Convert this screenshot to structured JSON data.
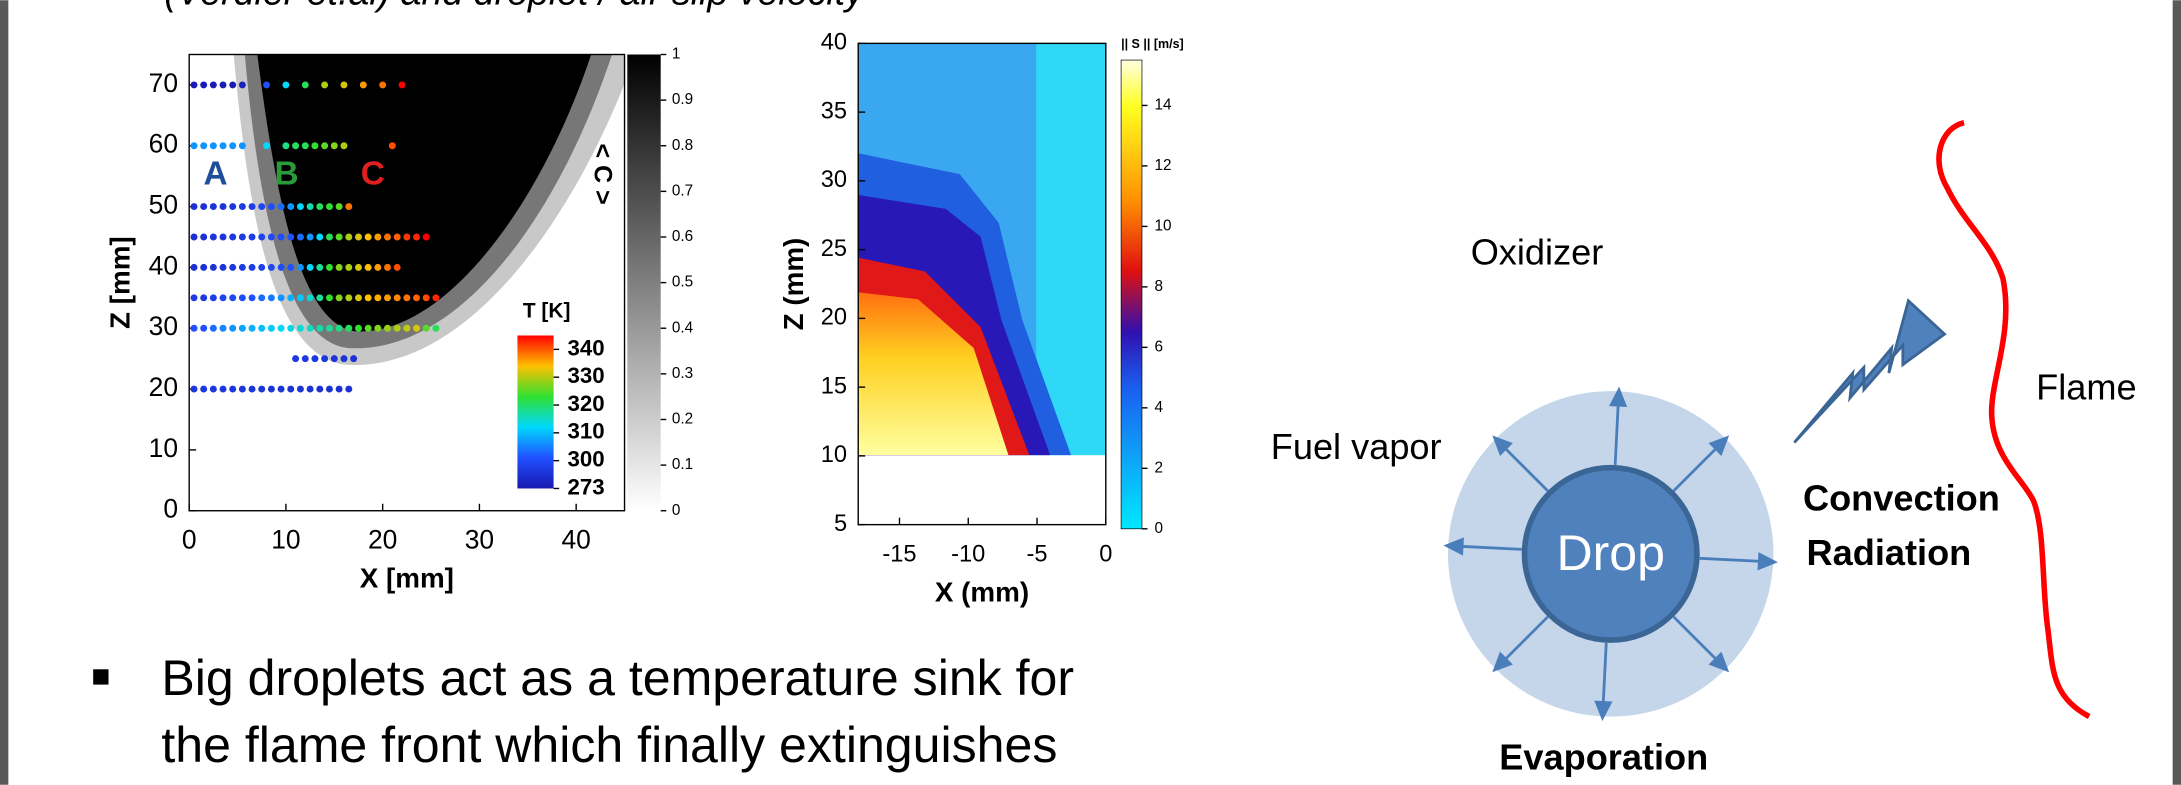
{
  "header": {
    "subtitle": "(Verdier et.al) and droplet / air slip velocity"
  },
  "chart_data": [
    {
      "type": "scatter",
      "xlabel": "X [mm]",
      "ylabel": "Z [mm]",
      "xlim": [
        0,
        45
      ],
      "ylim": [
        0,
        75
      ],
      "xticks": [
        0,
        10,
        20,
        30,
        40
      ],
      "yticks": [
        0,
        10,
        20,
        30,
        40,
        50,
        60,
        70
      ],
      "annotations": [
        {
          "text": "A",
          "color": "#1f4e9a"
        },
        {
          "text": "B",
          "color": "#2a9a3a"
        },
        {
          "text": "C",
          "color": "#e02020"
        }
      ],
      "colorbar": {
        "title": "T [K]",
        "ticks": [
          340,
          330,
          320,
          310,
          300,
          273
        ],
        "colormap": [
          "#ff0000",
          "#ffc000",
          "#30e030",
          "#00d8ff",
          "#2050ff",
          "#1818b0"
        ]
      },
      "background_colorbar": {
        "title": "< C >",
        "ticks": [
          0,
          0.1,
          0.2,
          0.3,
          0.4,
          0.5,
          0.6,
          0.7,
          0.8,
          0.9,
          1
        ]
      },
      "series": [
        {
          "y": 70,
          "x": [
            0.5,
            1.5,
            2.5,
            3.5,
            4.5,
            5.5,
            8,
            10,
            12,
            14,
            16,
            18,
            20,
            22
          ],
          "t": [
            275,
            275,
            275,
            275,
            275,
            278,
            300,
            310,
            318,
            326,
            328,
            332,
            334,
            340
          ]
        },
        {
          "y": 60,
          "x": [
            0.5,
            1.5,
            2.5,
            3.5,
            4.5,
            5.5,
            8,
            10,
            11,
            12,
            13,
            14,
            15,
            16,
            21
          ],
          "t": [
            305,
            305,
            305,
            305,
            305,
            305,
            310,
            316,
            318,
            318,
            320,
            322,
            324,
            326,
            336
          ]
        },
        {
          "y": 50,
          "x": [
            0.5,
            1.5,
            2.5,
            3.5,
            4.5,
            5.5,
            6.5,
            7.5,
            8.5,
            9.5,
            10.5,
            11.5,
            12.5,
            13.5,
            14.5,
            15.5,
            16.5
          ],
          "t": [
            285,
            285,
            286,
            287,
            288,
            290,
            292,
            295,
            298,
            302,
            305,
            310,
            314,
            318,
            320,
            322,
            334
          ]
        },
        {
          "y": 45,
          "x": [
            0.5,
            1.5,
            2.5,
            3.5,
            4.5,
            5.5,
            6.5,
            7.5,
            8.5,
            9.5,
            10.5,
            11.5,
            12.5,
            13.5,
            14.5,
            15.5,
            16.5,
            17.5,
            18.5,
            19.5,
            20.5,
            21.5,
            22.5,
            23.5,
            24.5
          ],
          "t": [
            285,
            285,
            286,
            287,
            288,
            290,
            292,
            294,
            296,
            298,
            300,
            302,
            305,
            310,
            318,
            322,
            326,
            328,
            330,
            332,
            334,
            335,
            337,
            338,
            340
          ]
        },
        {
          "y": 40,
          "x": [
            0.5,
            1.5,
            2.5,
            3.5,
            4.5,
            5.5,
            6.5,
            7.5,
            8.5,
            9.5,
            10.5,
            11.5,
            12.5,
            13.5,
            14.5,
            15.5,
            16.5,
            17.5,
            18.5,
            19.5,
            20.5,
            21.5
          ],
          "t": [
            285,
            285,
            286,
            287,
            288,
            290,
            292,
            294,
            296,
            298,
            300,
            305,
            310,
            315,
            320,
            324,
            326,
            328,
            330,
            332,
            334,
            336
          ]
        },
        {
          "y": 35,
          "x": [
            0.5,
            1.5,
            2.5,
            3.5,
            4.5,
            5.5,
            6.5,
            7.5,
            8.5,
            9.5,
            10.5,
            11.5,
            12.5,
            13.5,
            14.5,
            15.5,
            16.5,
            17.5,
            18.5,
            19.5,
            20.5,
            21.5,
            22.5,
            23.5,
            24.5,
            25.5
          ],
          "t": [
            290,
            290,
            292,
            294,
            296,
            298,
            300,
            302,
            303,
            305,
            307,
            309,
            312,
            315,
            320,
            324,
            326,
            328,
            330,
            331,
            332,
            333,
            334,
            335,
            336,
            338
          ]
        },
        {
          "y": 30,
          "x": [
            0.5,
            1.5,
            2.5,
            3.5,
            4.5,
            5.5,
            6.5,
            7.5,
            8.5,
            9.5,
            10.5,
            11.5,
            12.5,
            13.5,
            14.5,
            15.5,
            16.5,
            17.5,
            18.5,
            19.5,
            20.5,
            21.5,
            22.5,
            23.5,
            24.5,
            25.5
          ],
          "t": [
            300,
            300,
            302,
            304,
            305,
            306,
            307,
            308,
            309,
            310,
            311,
            312,
            313,
            314,
            315,
            316,
            318,
            320,
            322,
            324,
            325,
            326,
            327,
            328,
            322,
            318
          ]
        },
        {
          "y": 25,
          "x": [
            11,
            12,
            13,
            14,
            15,
            16,
            17
          ],
          "t": [
            290,
            290,
            288,
            288,
            286,
            286,
            285
          ]
        },
        {
          "y": 20,
          "x": [
            0.5,
            1.5,
            2.5,
            3.5,
            4.5,
            5.5,
            6.5,
            7.5,
            8.5,
            9.5,
            10.5,
            11.5,
            12.5,
            13.5,
            14.5,
            15.5,
            16.5
          ],
          "t": [
            288,
            288,
            288,
            288,
            288,
            288,
            287,
            287,
            287,
            287,
            286,
            286,
            286,
            285,
            285,
            285,
            285
          ]
        }
      ]
    },
    {
      "type": "heatmap",
      "xlabel": "X (mm)",
      "ylabel": "Z (mm)",
      "xlim": [
        -18,
        0
      ],
      "ylim": [
        5,
        40
      ],
      "xticks": [
        -15,
        -10,
        -5,
        0
      ],
      "yticks": [
        5,
        10,
        15,
        20,
        25,
        30,
        35,
        40
      ],
      "colorbar": {
        "title": "|| S || [m/s]",
        "clim": [
          0,
          15.5
        ],
        "ticks": [
          0,
          2,
          4,
          6,
          8,
          10,
          12,
          14
        ]
      }
    }
  ],
  "bullet": {
    "lines": [
      "Big droplets act as a temperature sink for",
      "the flame front which finally extinguishes"
    ]
  },
  "diagram": {
    "oxidizer": "Oxidizer",
    "fuel_vapor": "Fuel vapor",
    "drop": "Drop",
    "convection": "Convection",
    "radiation": "Radiation",
    "flame": "Flame",
    "evaporation": "Evaporation"
  }
}
